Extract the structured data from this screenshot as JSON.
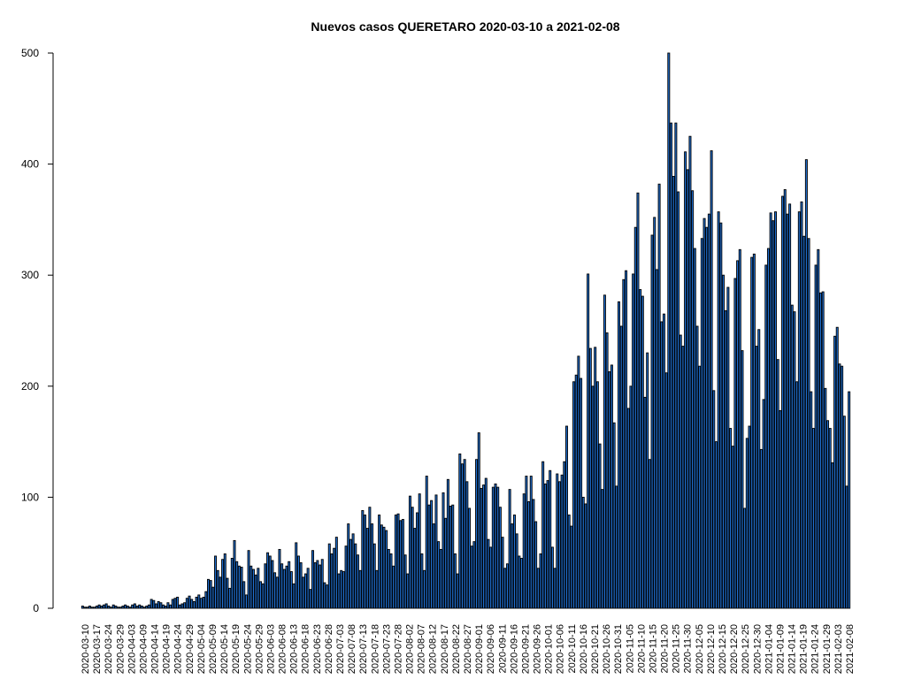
{
  "chart_data": {
    "type": "bar",
    "title": "Nuevos casos QUERETARO 2020-03-10 a 2021-02-08",
    "xlabel": "",
    "ylabel": "",
    "ylim": [
      0,
      500
    ],
    "y_ticks": [
      0,
      100,
      200,
      300,
      400,
      500
    ],
    "start_date": "2020-03-10",
    "end_date": "2021-02-08",
    "bar_color": "#1f6fd1",
    "bar_edge_color": "#000000",
    "x_tick_labels": [
      "2020-03-10",
      "2020-03-17",
      "2020-03-24",
      "2020-03-29",
      "2020-04-03",
      "2020-04-09",
      "2020-04-14",
      "2020-04-19",
      "2020-04-24",
      "2020-04-29",
      "2020-05-04",
      "2020-05-09",
      "2020-05-14",
      "2020-05-19",
      "2020-05-24",
      "2020-05-29",
      "2020-06-03",
      "2020-06-08",
      "2020-06-13",
      "2020-06-18",
      "2020-06-23",
      "2020-06-28",
      "2020-07-03",
      "2020-07-08",
      "2020-07-13",
      "2020-07-18",
      "2020-07-23",
      "2020-07-28",
      "2020-08-02",
      "2020-08-07",
      "2020-08-12",
      "2020-08-17",
      "2020-08-22",
      "2020-08-27",
      "2020-09-01",
      "2020-09-06",
      "2020-09-11",
      "2020-09-16",
      "2020-09-21",
      "2020-09-26",
      "2020-10-01",
      "2020-10-06",
      "2020-10-11",
      "2020-10-16",
      "2020-10-21",
      "2020-10-26",
      "2020-10-31",
      "2020-11-05",
      "2020-11-10",
      "2020-11-15",
      "2020-11-20",
      "2020-11-25",
      "2020-11-30",
      "2020-12-05",
      "2020-12-10",
      "2020-12-15",
      "2020-12-20",
      "2020-12-25",
      "2020-12-30",
      "2021-01-04",
      "2021-01-09",
      "2021-01-14",
      "2021-01-19",
      "2021-01-24",
      "2021-01-29",
      "2021-02-03",
      "2021-02-08"
    ],
    "values": [
      2,
      1,
      1,
      2,
      1,
      1,
      2,
      3,
      2,
      3,
      4,
      2,
      1,
      3,
      2,
      1,
      1,
      2,
      3,
      2,
      1,
      3,
      4,
      2,
      3,
      2,
      1,
      2,
      3,
      8,
      7,
      4,
      6,
      5,
      3,
      2,
      5,
      3,
      8,
      9,
      10,
      3,
      4,
      5,
      9,
      11,
      8,
      6,
      10,
      12,
      9,
      10,
      15,
      26,
      25,
      19,
      47,
      34,
      28,
      44,
      49,
      27,
      18,
      45,
      61,
      42,
      38,
      37,
      24,
      12,
      52,
      38,
      35,
      30,
      36,
      24,
      22,
      40,
      50,
      47,
      43,
      32,
      28,
      53,
      40,
      35,
      38,
      42,
      33,
      22,
      59,
      47,
      41,
      28,
      31,
      36,
      17,
      52,
      41,
      43,
      39,
      44,
      23,
      21,
      58,
      49,
      54,
      64,
      31,
      34,
      33,
      56,
      76,
      62,
      67,
      58,
      48,
      34,
      88,
      84,
      72,
      91,
      76,
      58,
      34,
      84,
      75,
      73,
      70,
      53,
      49,
      38,
      84,
      85,
      79,
      80,
      48,
      31,
      101,
      91,
      72,
      86,
      103,
      49,
      34,
      119,
      93,
      97,
      76,
      102,
      60,
      53,
      104,
      81,
      116,
      92,
      93,
      49,
      31,
      139,
      130,
      134,
      114,
      90,
      56,
      60,
      134,
      158,
      108,
      111,
      117,
      62,
      55,
      109,
      112,
      109,
      91,
      64,
      36,
      40,
      107,
      76,
      84,
      67,
      47,
      45,
      103,
      119,
      96,
      119,
      98,
      78,
      36,
      49,
      132,
      112,
      115,
      124,
      55,
      36,
      121,
      114,
      120,
      132,
      164,
      84,
      74,
      204,
      210,
      227,
      207,
      100,
      94,
      301,
      234,
      200,
      235,
      204,
      148,
      107,
      282,
      248,
      213,
      219,
      167,
      110,
      276,
      254,
      296,
      304,
      180,
      200,
      301,
      343,
      374,
      287,
      281,
      190,
      230,
      134,
      336,
      352,
      305,
      382,
      258,
      265,
      212,
      500,
      437,
      389,
      437,
      375,
      246,
      236,
      411,
      395,
      425,
      376,
      324,
      254,
      218,
      333,
      351,
      343,
      355,
      412,
      196,
      150,
      357,
      347,
      300,
      268,
      289,
      162,
      146,
      297,
      313,
      323,
      232,
      90,
      153,
      164,
      316,
      319,
      236,
      251,
      143,
      188,
      309,
      324,
      356,
      349,
      357,
      224,
      178,
      371,
      377,
      355,
      364,
      273,
      267,
      204,
      357,
      366,
      335,
      404,
      333,
      195,
      162,
      309,
      323,
      284,
      285,
      198,
      169,
      162,
      131,
      245,
      253,
      220,
      218,
      173,
      110,
      195
    ]
  }
}
